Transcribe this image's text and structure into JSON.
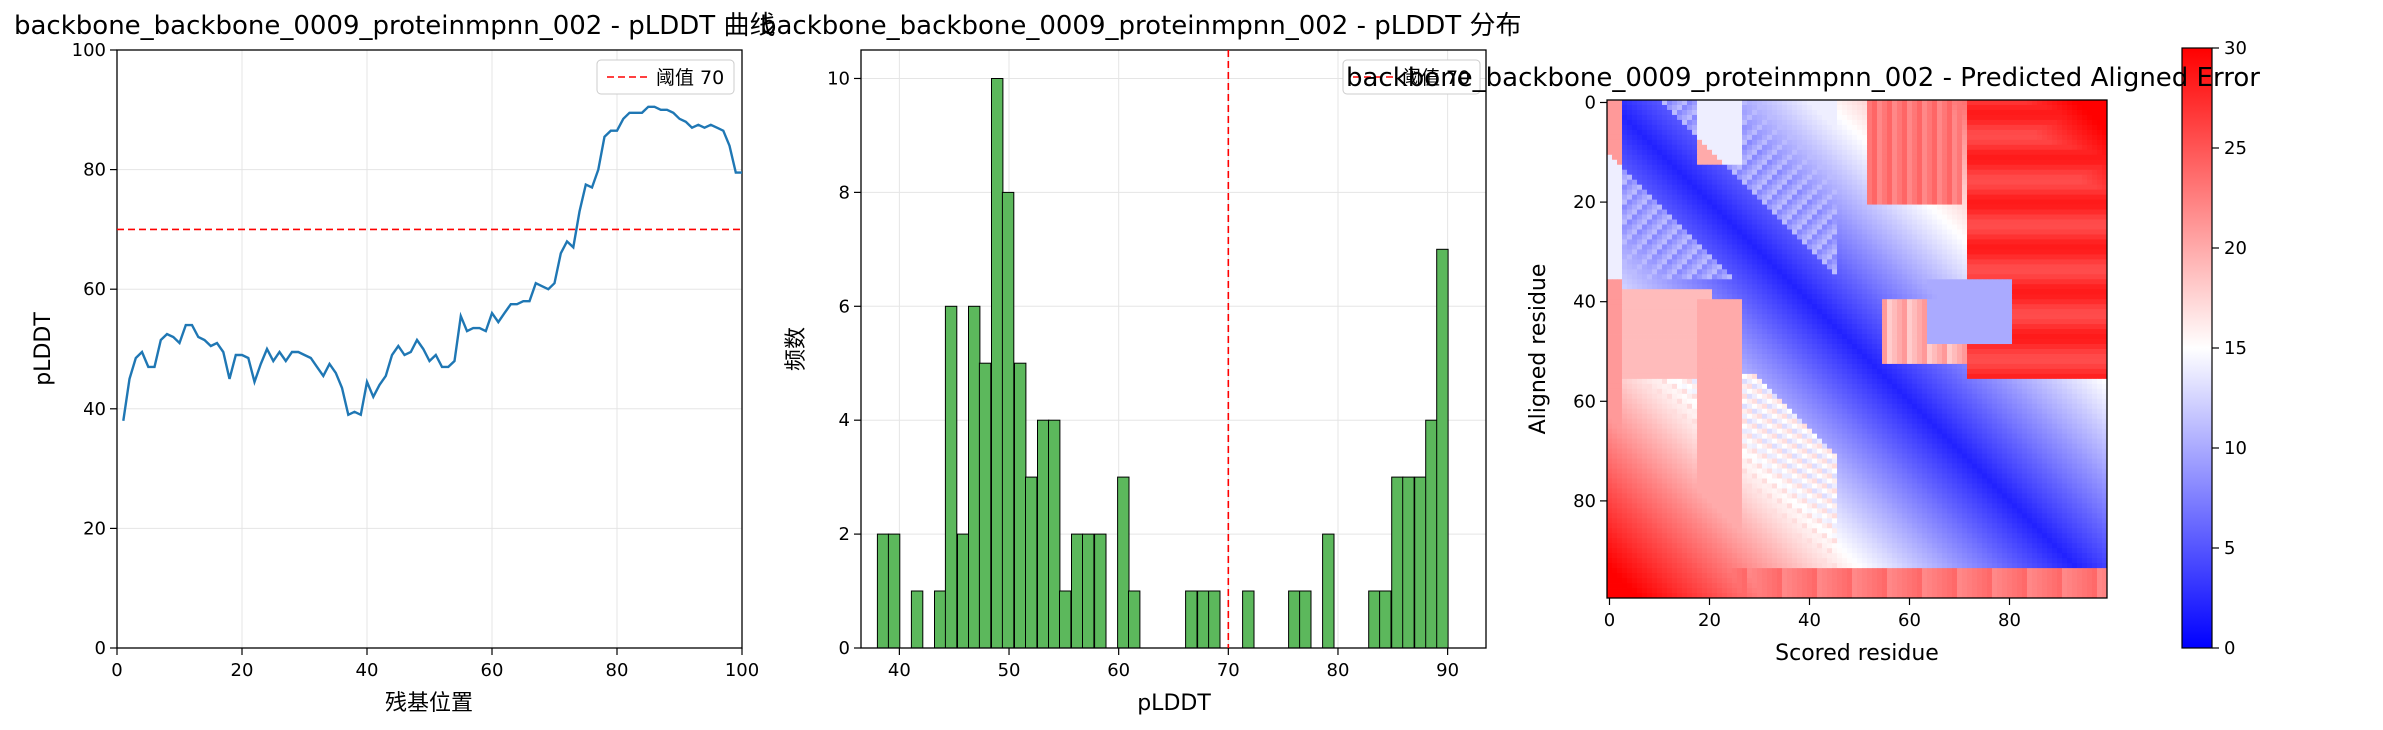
{
  "colors": {
    "line": "#1f77b4",
    "threshold": "#ff0000",
    "bar_fill": "#5cb85c",
    "bar_edge": "#000000",
    "grid": "#e5e5e5"
  },
  "plddt_line": {
    "title": "backbone_backbone_0009_proteinmpnn_002 - pLDDT 曲线",
    "xlabel": "残基位置",
    "ylabel": "pLDDT",
    "xticks": [
      "0",
      "20",
      "40",
      "60",
      "80",
      "100"
    ],
    "yticks": [
      "0",
      "20",
      "40",
      "60",
      "80",
      "100"
    ],
    "legend_label": "阈值 70"
  },
  "plddt_hist": {
    "title": "backbone_backbone_0009_proteinmpnn_002 - pLDDT 分布",
    "xlabel": "pLDDT",
    "ylabel": "频数",
    "xticks": [
      "40",
      "50",
      "60",
      "70",
      "80",
      "90"
    ],
    "yticks": [
      "0",
      "2",
      "4",
      "6",
      "8",
      "10"
    ],
    "legend_label": "阈值 70"
  },
  "pae": {
    "title": "backbone_backbone_0009_proteinmpnn_002 - Predicted Aligned Error",
    "xlabel": "Scored residue",
    "ylabel": "Aligned residue",
    "xticks": [
      "0",
      "20",
      "40",
      "60",
      "80"
    ],
    "yticks": [
      "0",
      "20",
      "40",
      "60",
      "80"
    ],
    "colorbar_ticks": [
      "0",
      "5",
      "10",
      "15",
      "20",
      "25",
      "30"
    ]
  },
  "chart_data": [
    {
      "type": "line",
      "title": "backbone_backbone_0009_proteinmpnn_002 - pLDDT 曲线",
      "xlabel": "残基位置",
      "ylabel": "pLDDT",
      "xlim": [
        0,
        100
      ],
      "ylim": [
        0,
        100
      ],
      "grid": true,
      "legend_position": "top-right",
      "threshold": {
        "name": "阈值 70",
        "y": 70,
        "style": "dashed",
        "color": "#ff0000"
      },
      "series": [
        {
          "x": [
            1,
            2,
            3,
            4,
            5,
            6,
            7,
            8,
            9,
            10,
            11,
            12,
            13,
            14,
            15,
            16,
            17,
            18,
            19,
            20,
            21,
            22,
            23,
            24,
            25,
            26,
            27,
            28,
            29,
            30,
            31,
            32,
            33,
            34,
            35,
            36,
            37,
            38,
            39,
            40,
            41,
            42,
            43,
            44,
            45,
            46,
            47,
            48,
            49,
            50,
            51,
            52,
            53,
            54,
            55,
            56,
            57,
            58,
            59,
            60,
            61,
            62,
            63,
            64,
            65,
            66,
            67,
            68,
            69,
            70,
            71,
            72,
            73,
            74,
            75,
            76,
            77,
            78,
            79,
            80,
            81,
            82,
            83,
            84,
            85,
            86,
            87,
            88,
            89,
            90,
            91,
            92,
            93,
            94,
            95,
            96,
            97,
            98,
            99,
            100
          ],
          "values": [
            38,
            45,
            48.5,
            49.5,
            47,
            47,
            51.5,
            52.5,
            52,
            51,
            54,
            54,
            52,
            51.5,
            50.5,
            51,
            49.5,
            45,
            49,
            49,
            48.5,
            44.5,
            47.5,
            50,
            48,
            49.5,
            48,
            49.5,
            49.5,
            49,
            48.5,
            47,
            45.5,
            47.5,
            46,
            43.5,
            39,
            39.5,
            39,
            44.5,
            42,
            44,
            45.5,
            49,
            50.5,
            49,
            49.5,
            51.5,
            50,
            48,
            49,
            47,
            47,
            48,
            55.5,
            53,
            53.5,
            53.5,
            53,
            56,
            54.5,
            56,
            57.5,
            57.5,
            58,
            58,
            61,
            60.5,
            60,
            61,
            66,
            68,
            67,
            73,
            77.5,
            77,
            80,
            85.5,
            86.5,
            86.5,
            88.5,
            89.5,
            89.5,
            89.5,
            90.5,
            90.5,
            90,
            90,
            89.5,
            88.5,
            88,
            87,
            87.5,
            87,
            87.5,
            87,
            86.5,
            84,
            79.5,
            79.5
          ]
        }
      ]
    },
    {
      "type": "bar",
      "title": "backbone_backbone_0009_proteinmpnn_002 - pLDDT 分布",
      "xlabel": "pLDDT",
      "ylabel": "频数",
      "xlim": [
        36.5,
        93.5
      ],
      "ylim": [
        0,
        10.5
      ],
      "bin_width": 1.04,
      "grid": true,
      "legend_position": "top-right",
      "threshold": {
        "name": "阈值 70",
        "x": 70,
        "style": "dashed",
        "color": "#ff0000"
      },
      "bins": [
        {
          "x0": 38.0,
          "count": 2
        },
        {
          "x0": 39.0,
          "count": 2
        },
        {
          "x0": 41.1,
          "count": 1
        },
        {
          "x0": 43.2,
          "count": 1
        },
        {
          "x0": 44.2,
          "count": 6
        },
        {
          "x0": 45.3,
          "count": 2
        },
        {
          "x0": 46.3,
          "count": 6
        },
        {
          "x0": 47.3,
          "count": 5
        },
        {
          "x0": 48.4,
          "count": 10
        },
        {
          "x0": 49.4,
          "count": 8
        },
        {
          "x0": 50.5,
          "count": 5
        },
        {
          "x0": 51.5,
          "count": 3
        },
        {
          "x0": 52.6,
          "count": 4
        },
        {
          "x0": 53.6,
          "count": 4
        },
        {
          "x0": 54.6,
          "count": 1
        },
        {
          "x0": 55.7,
          "count": 2
        },
        {
          "x0": 56.7,
          "count": 2
        },
        {
          "x0": 57.8,
          "count": 2
        },
        {
          "x0": 59.9,
          "count": 3
        },
        {
          "x0": 60.9,
          "count": 1
        },
        {
          "x0": 66.1,
          "count": 1
        },
        {
          "x0": 67.2,
          "count": 1
        },
        {
          "x0": 68.2,
          "count": 1
        },
        {
          "x0": 71.3,
          "count": 1
        },
        {
          "x0": 75.5,
          "count": 1
        },
        {
          "x0": 76.5,
          "count": 1
        },
        {
          "x0": 78.6,
          "count": 2
        },
        {
          "x0": 82.8,
          "count": 1
        },
        {
          "x0": 83.8,
          "count": 1
        },
        {
          "x0": 84.9,
          "count": 3
        },
        {
          "x0": 85.9,
          "count": 3
        },
        {
          "x0": 87.0,
          "count": 3
        },
        {
          "x0": 88.0,
          "count": 4
        },
        {
          "x0": 89.0,
          "count": 7
        }
      ]
    },
    {
      "type": "heatmap",
      "title": "backbone_backbone_0009_proteinmpnn_002 - Predicted Aligned Error",
      "xlabel": "Scored residue",
      "ylabel": "Aligned residue",
      "xlim": [
        0,
        99
      ],
      "ylim": [
        99,
        0
      ],
      "colorscale": "bwr",
      "vmin": 0,
      "vmax": 30,
      "colorbar_label": "",
      "description_of_pattern": "low error along diagonal; high error in upper-right block (rows 0-55, cols 70-99) and left/bottom edges"
    }
  ]
}
